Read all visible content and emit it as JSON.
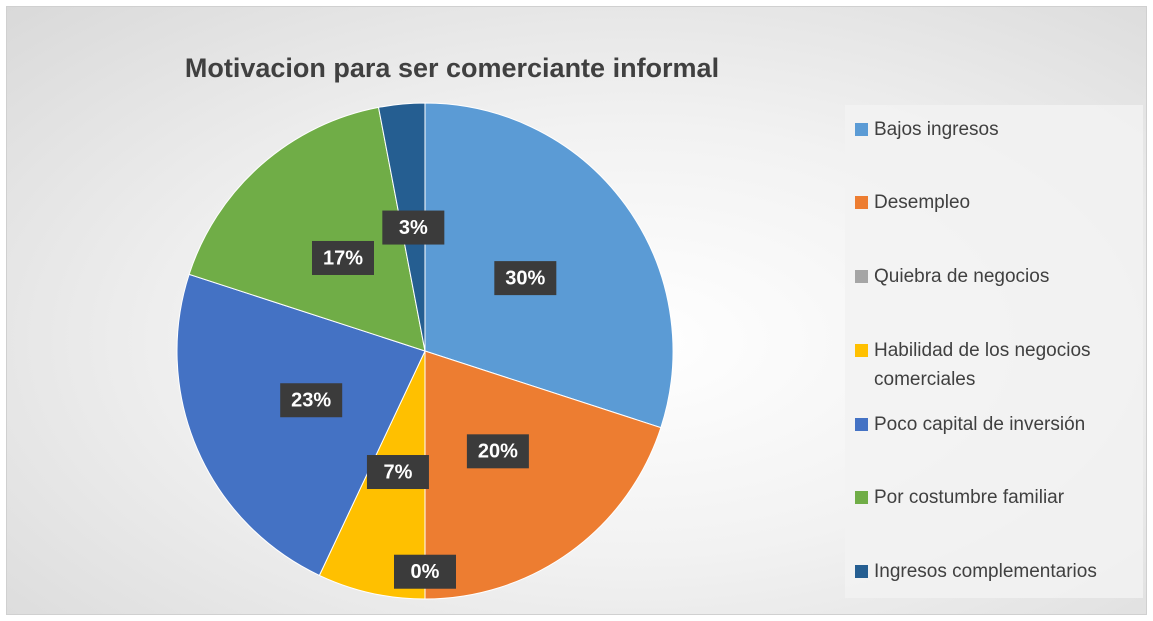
{
  "chart_data": {
    "type": "pie",
    "title": "Motivacion para ser comerciante informal",
    "categories": [
      "Bajos ingresos",
      "Desempleo",
      "Quiebra de negocios",
      "Habilidad de los negocios comerciales",
      "Poco capital de inversión",
      "Por costumbre familiar",
      "Ingresos complementarios"
    ],
    "values": [
      30,
      20,
      0,
      7,
      23,
      17,
      3
    ],
    "value_labels": [
      "30%",
      "20%",
      "0%",
      "7%",
      "23%",
      "17%",
      "3%"
    ],
    "colors": [
      "#5b9bd5",
      "#ed7d31",
      "#a5a5a5",
      "#ffc000",
      "#4472c4",
      "#70ad47",
      "#255e91"
    ],
    "legend": "right"
  }
}
